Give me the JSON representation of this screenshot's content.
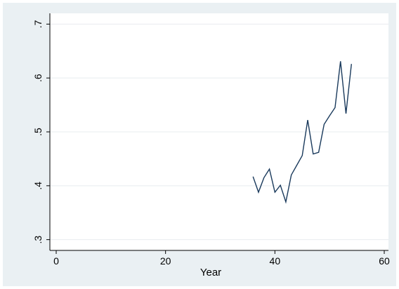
{
  "chart_data": {
    "type": "line",
    "title": "",
    "xlabel": "Year",
    "ylabel": "",
    "xlim": [
      0,
      60
    ],
    "ylim": [
      0.3,
      0.7
    ],
    "x_ticks": [
      0,
      20,
      40,
      60
    ],
    "x_tick_labels": [
      "0",
      "20",
      "40",
      "60"
    ],
    "y_ticks": [
      0.3,
      0.4,
      0.5,
      0.6,
      0.7
    ],
    "y_tick_labels": [
      ".3",
      ".4",
      ".5",
      ".6",
      ".7"
    ],
    "grid": "horizontal",
    "legend": "none",
    "series": [
      {
        "color": "#1a3a5c",
        "x": [
          36,
          37,
          38,
          39,
          40,
          41,
          42,
          43,
          44,
          45,
          46,
          47,
          48,
          49,
          50,
          51,
          52,
          53,
          54
        ],
        "y": [
          0.417,
          0.388,
          0.415,
          0.431,
          0.388,
          0.401,
          0.37,
          0.42,
          0.438,
          0.456,
          0.522,
          0.459,
          0.462,
          0.514,
          0.53,
          0.545,
          0.631,
          0.534,
          0.626
        ]
      }
    ]
  }
}
